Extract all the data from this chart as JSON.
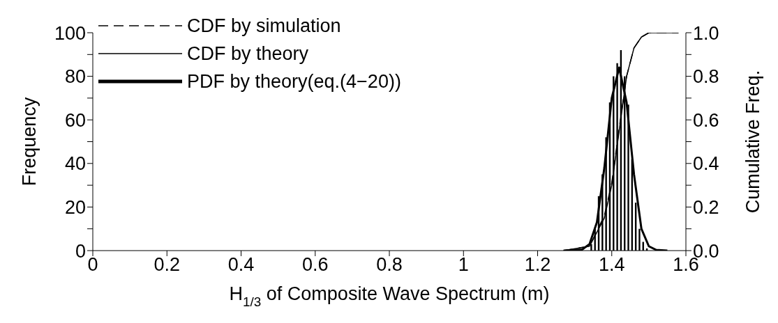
{
  "chart_data": {
    "type": "histogram",
    "xlabel": "H$_{1/3}$ of Composite Wave Spectrum (m)",
    "ylabel": "Frequency",
    "y2label": "Cumulative Freq.",
    "bins": [
      1.34,
      1.35,
      1.36,
      1.37,
      1.38,
      1.39,
      1.4,
      1.41,
      1.42,
      1.43,
      1.44,
      1.45,
      1.46,
      1.47,
      1.48,
      1.49,
      1.5
    ],
    "values": [
      3,
      10,
      25,
      35,
      52,
      68,
      80,
      86,
      92,
      80,
      67,
      42,
      22,
      10,
      4,
      1
    ],
    "color": "#000000",
    "series": [
      {
        "name": "CDF by simulation",
        "type": "line",
        "axis": "y2",
        "color": "#000000",
        "line_style": "dashed",
        "x": [
          1.27,
          1.34,
          1.38,
          1.4,
          1.42,
          1.44,
          1.46,
          1.48,
          1.5,
          1.58
        ],
        "values": [
          0,
          0.02,
          0.16,
          0.31,
          0.56,
          0.8,
          0.93,
          0.98,
          1,
          1
        ]
      },
      {
        "name": "CDF by theory",
        "type": "line",
        "axis": "y2",
        "color": "#000000",
        "line_style": "solid",
        "x": [
          1.27,
          1.34,
          1.38,
          1.4,
          1.42,
          1.44,
          1.46,
          1.48,
          1.5,
          1.58
        ],
        "values": [
          0,
          0.02,
          0.15,
          0.3,
          0.55,
          0.8,
          0.93,
          0.98,
          1,
          1
        ]
      },
      {
        "name": "PDF by theory(eq.(4−20))",
        "type": "line",
        "axis": "y",
        "color": "#000000",
        "line_style": "solid",
        "x": [
          1.27,
          1.32,
          1.34,
          1.36,
          1.38,
          1.4,
          1.42,
          1.44,
          1.46,
          1.48,
          1.5,
          1.52,
          1.55
        ],
        "values": [
          0,
          0.5,
          3,
          13,
          38,
          70,
          84,
          68,
          35,
          10,
          2,
          0.3,
          0
        ]
      }
    ],
    "xlim": [
      0,
      1.6
    ],
    "xticks": [
      0,
      0.2,
      0.4,
      0.6,
      0.8,
      1,
      1.2,
      1.4,
      1.6
    ],
    "ylim": [
      0,
      100
    ],
    "yticks": [
      0,
      {
        "value": 10,
        "label": null
      },
      20,
      {
        "value": 30,
        "label": null
      },
      40,
      {
        "value": 50,
        "label": null
      },
      60,
      {
        "value": 70,
        "label": null
      },
      80,
      {
        "value": 90,
        "label": null
      },
      100
    ],
    "y2lim": [
      0,
      1
    ],
    "y2ticks": [
      {
        "value": 0,
        "label": "0.0"
      },
      {
        "value": 0.1,
        "label": null
      },
      {
        "value": 0.2,
        "label": "0.2"
      },
      {
        "value": 0.3,
        "label": null
      },
      {
        "value": 0.4,
        "label": "0.4"
      },
      {
        "value": 0.5,
        "label": null
      },
      {
        "value": 0.6,
        "label": "0.6"
      },
      {
        "value": 0.7,
        "label": null
      },
      {
        "value": 0.8,
        "label": "0.8"
      },
      {
        "value": 0.9,
        "label": null
      },
      {
        "value": 1,
        "label": "1.0"
      }
    ],
    "legend": "top left",
    "grid": false
  }
}
